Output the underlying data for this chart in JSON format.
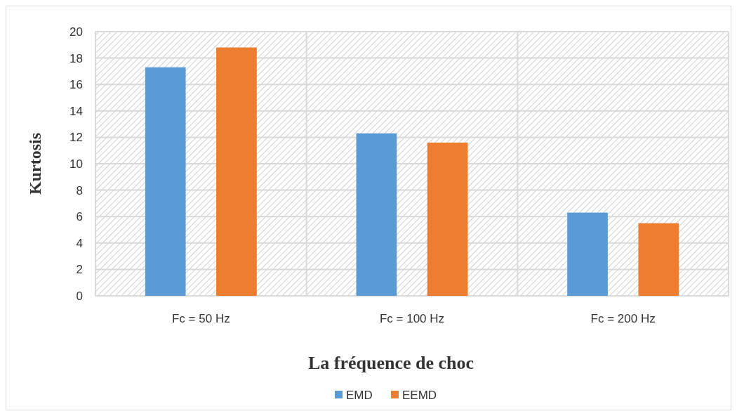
{
  "chart_data": {
    "type": "bar",
    "xlabel": "La fréquence de choc",
    "ylabel": "Kurtosis",
    "categories": [
      "Fc = 50 Hz",
      "Fc = 100 Hz",
      "Fc = 200 Hz"
    ],
    "series": [
      {
        "name": "EMD",
        "color": "#5b9bd5",
        "values": [
          17.3,
          12.3,
          6.3
        ]
      },
      {
        "name": "EEMD",
        "color": "#ed7d31",
        "values": [
          18.8,
          11.6,
          5.5
        ]
      }
    ],
    "ylim": [
      0,
      20
    ],
    "yticks": [
      0,
      2,
      4,
      6,
      8,
      10,
      12,
      14,
      16,
      18,
      20
    ],
    "grid": true,
    "legend": "bottom"
  }
}
